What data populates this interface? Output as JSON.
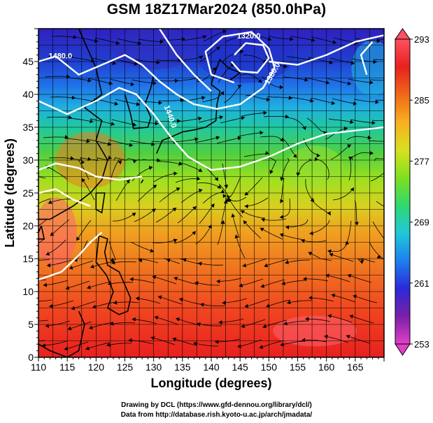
{
  "title": "GSM 18Z17Mar2024 (850.0hPa)",
  "map": {
    "xlabel": "Longitude (degrees)",
    "ylabel": "Latitude  (degrees)",
    "x_ticks": [
      {
        "value": 110,
        "label": "110"
      },
      {
        "value": 115,
        "label": "115"
      },
      {
        "value": 120,
        "label": "120"
      },
      {
        "value": 125,
        "label": "125"
      },
      {
        "value": 130,
        "label": "130"
      },
      {
        "value": 135,
        "label": "135"
      },
      {
        "value": 140,
        "label": "140"
      },
      {
        "value": 145,
        "label": "145"
      },
      {
        "value": 150,
        "label": "150"
      },
      {
        "value": 155,
        "label": "155"
      },
      {
        "value": 160,
        "label": "160"
      },
      {
        "value": 165,
        "label": "165"
      }
    ],
    "y_ticks": [
      {
        "value": 0,
        "label": "0"
      },
      {
        "value": 5,
        "label": "5"
      },
      {
        "value": 10,
        "label": "10"
      },
      {
        "value": 15,
        "label": "15"
      },
      {
        "value": 20,
        "label": "20"
      },
      {
        "value": 25,
        "label": "25"
      },
      {
        "value": 30,
        "label": "30"
      },
      {
        "value": 35,
        "label": "35"
      },
      {
        "value": 40,
        "label": "40"
      },
      {
        "value": 45,
        "label": "45"
      }
    ],
    "xlim": [
      110,
      170
    ],
    "ylim": [
      0,
      50
    ],
    "contour_labels": [
      {
        "text": "1320.0",
        "lon": 146.5,
        "lat": 48.5
      },
      {
        "text": "1380.0",
        "lon": 151.0,
        "lat": 43.0
      },
      {
        "text": "1440.0",
        "lon": 132.5,
        "lat": 36.5
      },
      {
        "text": "1480.0",
        "lon": 113.8,
        "lat": 45.5
      }
    ]
  },
  "colorbar": {
    "min": 253,
    "max": 293,
    "tick_labels": [
      "293",
      "285",
      "277",
      "269",
      "261",
      "253"
    ],
    "tick_values": [
      293,
      285,
      277,
      269,
      261,
      253
    ],
    "colors": [
      "#e040c8",
      "#7a1fa8",
      "#2a2ad8",
      "#1e7ff0",
      "#20c8d8",
      "#30d870",
      "#7fe01e",
      "#d8e020",
      "#f8b020",
      "#f06818",
      "#e82020",
      "#ff5060"
    ]
  },
  "credits": {
    "line1": "Drawing by DCL (https://www.gfd-dennou.org/library/dcl/)",
    "line2": "Data from http://database.rish.kyoto-u.ac.jp/arch/jmadata/"
  }
}
